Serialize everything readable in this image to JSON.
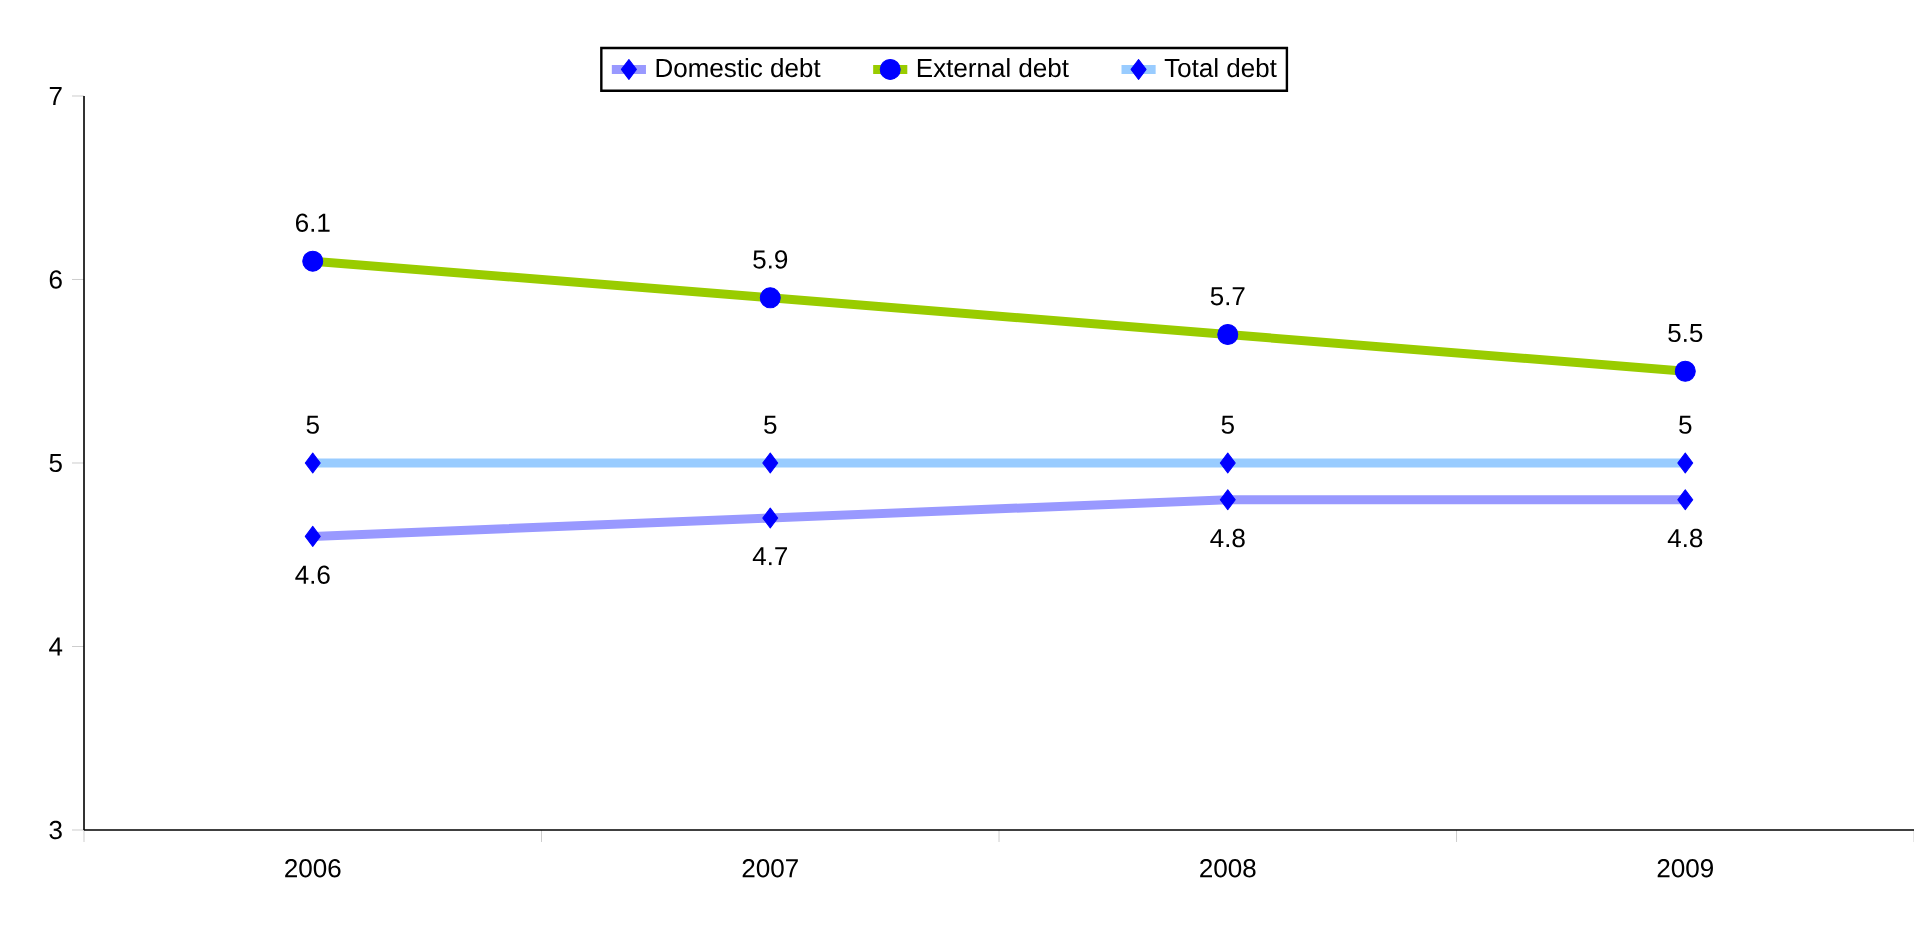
{
  "chart_data": {
    "type": "line",
    "categories": [
      "2006",
      "2007",
      "2008",
      "2009"
    ],
    "series": [
      {
        "name": "Domestic debt",
        "color": "#9999ff",
        "marker": "diamond",
        "values": [
          4.6,
          4.7,
          4.8,
          4.8
        ]
      },
      {
        "name": "External debt",
        "color": "#99cc00",
        "marker": "circle",
        "values": [
          6.1,
          5.9,
          5.7,
          5.5
        ]
      },
      {
        "name": "Total debt",
        "color": "#99ccff",
        "marker": "diamond",
        "values": [
          5,
          5,
          5,
          5
        ]
      }
    ],
    "ylim": [
      3,
      7
    ],
    "yticks": [
      3,
      4,
      5,
      6,
      7
    ],
    "data_labels": true,
    "legend": "top",
    "grid": false
  }
}
